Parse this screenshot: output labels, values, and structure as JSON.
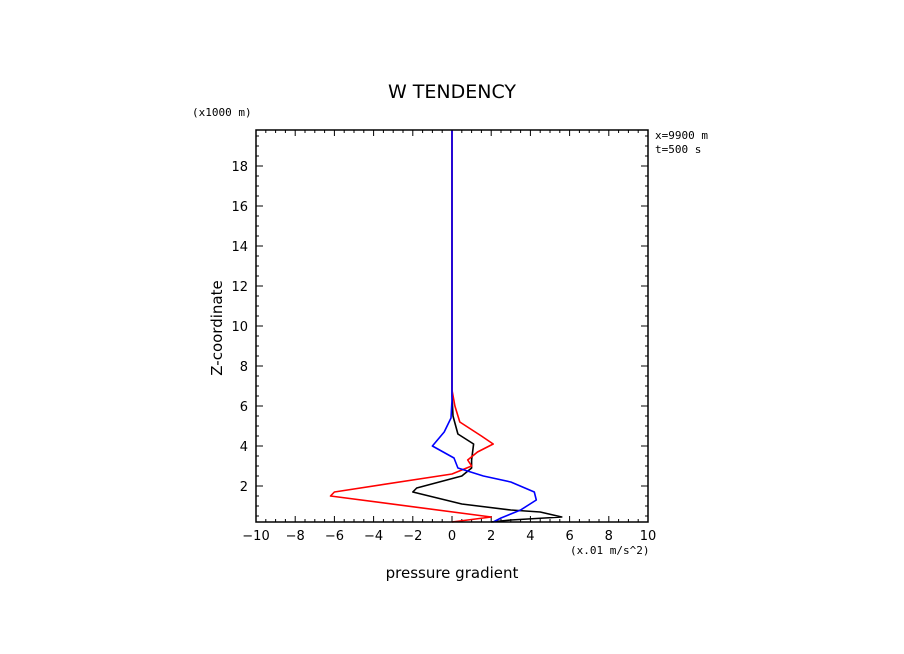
{
  "chart_data": {
    "type": "line",
    "title": "W TENDENCY",
    "ylabel": "Z-coordinate",
    "yunit": "(x1000 m)",
    "xlabel": "pressure gradient",
    "xunit": "(x.01 m/s^2)",
    "annotation_x": "x=9900 m",
    "annotation_t": "t=500 s",
    "xlim": [
      -10,
      10
    ],
    "ylim": [
      0.2,
      19.8
    ],
    "xticks": [
      -10,
      -8,
      -6,
      -4,
      -2,
      0,
      2,
      4,
      6,
      8,
      10
    ],
    "xtick_labels": [
      "−10",
      "−8",
      "−6",
      "−4",
      "−2",
      "0",
      "2",
      "4",
      "6",
      "8",
      "10"
    ],
    "yticks": [
      2,
      4,
      6,
      8,
      10,
      12,
      14,
      16,
      18
    ],
    "ytick_labels": [
      "2",
      "4",
      "6",
      "8",
      "10",
      "12",
      "14",
      "16",
      "18"
    ],
    "grid": false,
    "series": [
      {
        "name": "black",
        "color": "#000000",
        "dashed": true,
        "points": [
          [
            2.0,
            0.2
          ],
          [
            3.0,
            0.3
          ],
          [
            5.6,
            0.45
          ],
          [
            4.5,
            0.7
          ],
          [
            3.0,
            0.8
          ],
          [
            0.5,
            1.1
          ],
          [
            -2.0,
            1.7
          ],
          [
            -1.8,
            1.9
          ],
          [
            0.5,
            2.5
          ],
          [
            1.0,
            2.9
          ],
          [
            1.0,
            3.3
          ],
          [
            1.1,
            4.1
          ],
          [
            0.3,
            4.6
          ],
          [
            0.05,
            5.5
          ],
          [
            0.0,
            6.5
          ],
          [
            0.0,
            19.8
          ]
        ]
      },
      {
        "name": "red",
        "color": "#ff0000",
        "dashed": true,
        "points": [
          [
            0.0,
            0.2
          ],
          [
            2.0,
            0.45
          ],
          [
            -6.2,
            1.5
          ],
          [
            -6.0,
            1.7
          ],
          [
            0.0,
            2.6
          ],
          [
            1.0,
            3.0
          ],
          [
            0.8,
            3.3
          ],
          [
            1.3,
            3.7
          ],
          [
            2.1,
            4.1
          ],
          [
            1.5,
            4.5
          ],
          [
            0.4,
            5.2
          ],
          [
            0.15,
            6.0
          ],
          [
            0.0,
            6.8
          ],
          [
            0.0,
            19.8
          ]
        ]
      },
      {
        "name": "blue",
        "color": "#0000ff",
        "dashed": false,
        "points": [
          [
            2.1,
            0.2
          ],
          [
            2.5,
            0.4
          ],
          [
            3.5,
            0.8
          ],
          [
            4.3,
            1.3
          ],
          [
            4.2,
            1.7
          ],
          [
            3.0,
            2.2
          ],
          [
            1.6,
            2.5
          ],
          [
            0.3,
            2.9
          ],
          [
            0.1,
            3.4
          ],
          [
            -1.0,
            4.0
          ],
          [
            -0.4,
            4.7
          ],
          [
            -0.05,
            5.4
          ],
          [
            0.0,
            6.3
          ],
          [
            0.0,
            19.8
          ]
        ]
      }
    ]
  }
}
